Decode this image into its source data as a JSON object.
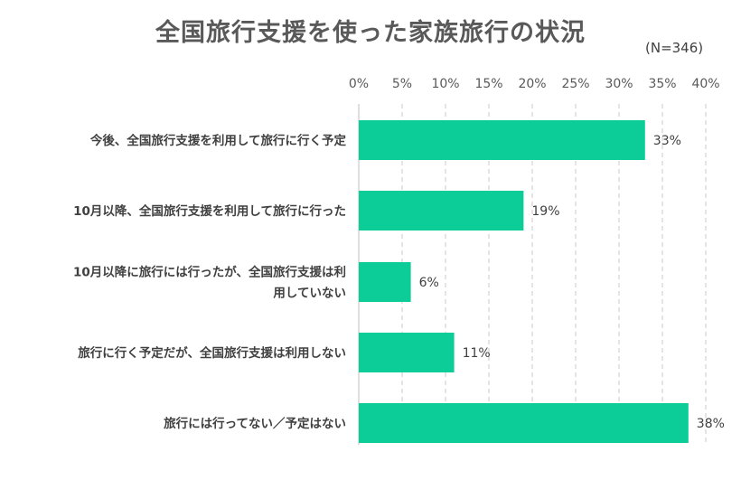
{
  "chart_data": {
    "type": "bar",
    "orientation": "horizontal",
    "title": "全国旅行支援を使った家族旅行の状況",
    "note": "(N=346)",
    "xlim": [
      0,
      40
    ],
    "x_ticks": [
      "0%",
      "5%",
      "10%",
      "15%",
      "20%",
      "25%",
      "30%",
      "35%",
      "40%"
    ],
    "categories": [
      [
        "今後、全国旅行支援を利用して旅行に行く予定"
      ],
      [
        "10月以降、全国旅行支援を利用して旅行に行った"
      ],
      [
        "10月以降に旅行には行ったが、全国旅行支援は利",
        "用していない"
      ],
      [
        "旅行に行く予定だが、全国旅行支援は利用しない"
      ],
      [
        "旅行には行ってない／予定はない"
      ]
    ],
    "values": [
      33,
      19,
      6,
      11,
      38
    ],
    "data_labels": [
      "33%",
      "19%",
      "6%",
      "11%",
      "38%"
    ],
    "grid": "vertical dashed",
    "colors": {
      "bar": "#0ccc97",
      "grid": "#c8c8c8",
      "text": "#595959"
    }
  }
}
